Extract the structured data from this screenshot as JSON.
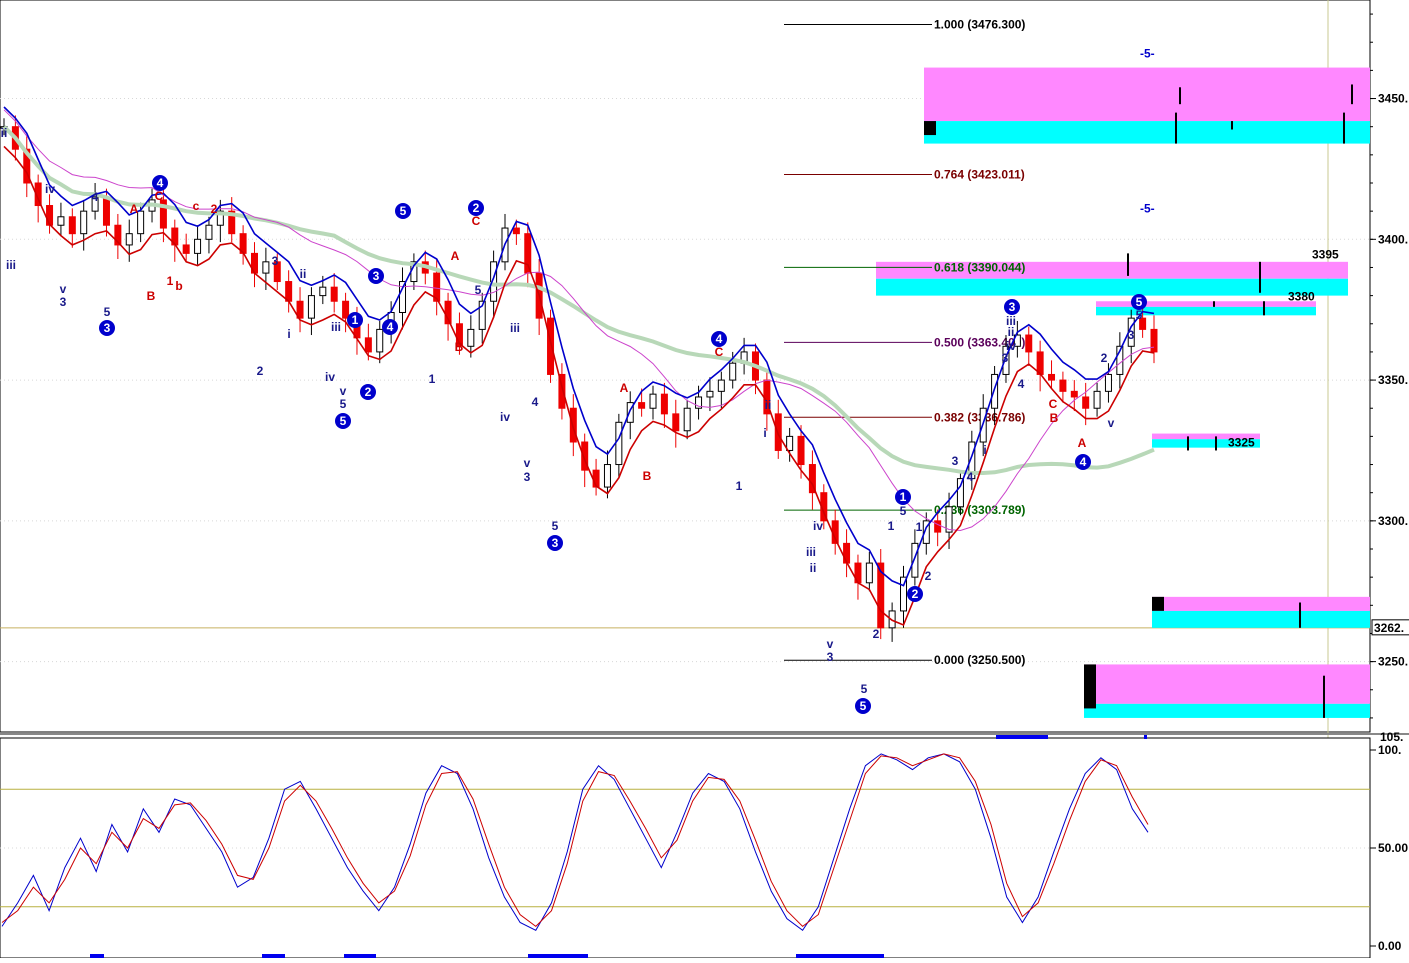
{
  "chart_data": [
    {
      "type": "candlestick",
      "panel": "price",
      "ylim": [
        3225,
        3485
      ],
      "y_tick_labels": [
        "3450.",
        "3400.",
        "3350.",
        "3300.",
        "3250."
      ],
      "y_ticks": [
        3450,
        3400,
        3350,
        3300,
        3250
      ],
      "current_price_label": "3262.",
      "current_price": 3262,
      "grid": true,
      "fibonacci": [
        {
          "ratio": "1.000",
          "price": "3476.300",
          "value": 3476.3,
          "color": "#000000"
        },
        {
          "ratio": "0.764",
          "price": "3423.011",
          "value": 3423.011,
          "color": "#7a0000"
        },
        {
          "ratio": "0.618",
          "price": "3390.044",
          "value": 3390.044,
          "color": "#006400"
        },
        {
          "ratio": "0.500",
          "price": "3363.400",
          "value": 3363.4,
          "color": "#5a005a"
        },
        {
          "ratio": "0.382",
          "price": "3336.786",
          "value": 3336.786,
          "color": "#7a0000"
        },
        {
          "ratio": "0.236",
          "price": "3303.789",
          "value": 3303.789,
          "color": "#006400"
        },
        {
          "ratio": "0.000",
          "price": "3250.500",
          "value": 3250.5,
          "color": "#000000"
        }
      ],
      "fib_label_texts": [
        "1.000 (3476.300)",
        "0.764 (3423.011)",
        "0.618 (3390.044)",
        "0.500 (3363.400)",
        "0.382 (3336.786)",
        "0.236 (3303.789)",
        "0.000 (3250.500)"
      ],
      "price_zone_labels": [
        {
          "text": "3395",
          "value": 3395
        },
        {
          "text": "3380",
          "value": 3380
        },
        {
          "text": "3325",
          "value": 3325
        }
      ],
      "dash_labels": [
        "-5-",
        "-5-"
      ],
      "wave_labels_red": [
        "A",
        "C",
        "B",
        "c",
        "b",
        "1",
        "2",
        "A",
        "C",
        "B",
        "A",
        "B",
        "C",
        "A",
        "B",
        "C"
      ],
      "wave_labels_blue_circled": [
        "4",
        "3",
        "5",
        "2",
        "3",
        "1",
        "2",
        "4",
        "5",
        "3",
        "4",
        "5",
        "1",
        "2",
        "3",
        "5",
        "4"
      ],
      "wave_labels_dark": [
        "ii",
        "iii",
        "iv",
        "v",
        "3",
        "4",
        "5",
        "2",
        "3",
        "i",
        "ii",
        "iii",
        "iv",
        "v",
        "5",
        "iv",
        "iii",
        "v",
        "3",
        "4",
        "5",
        "1",
        "i",
        "ii",
        "iv",
        "ii",
        "iii",
        "v",
        "3",
        "5",
        "2",
        "1",
        "2",
        "3",
        "4",
        "5",
        "1",
        "i",
        "3",
        "4",
        "ii",
        "iii",
        "iv",
        "v",
        "5",
        "2",
        "3",
        "1",
        "5"
      ],
      "close_series": [
        3440,
        3432,
        3420,
        3412,
        3405,
        3408,
        3402,
        3410,
        3415,
        3405,
        3398,
        3402,
        3410,
        3414,
        3404,
        3398,
        3395,
        3400,
        3405,
        3410,
        3402,
        3395,
        3388,
        3392,
        3385,
        3378,
        3372,
        3380,
        3383,
        3378,
        3372,
        3365,
        3360,
        3368,
        3374,
        3385,
        3392,
        3388,
        3378,
        3370,
        3362,
        3368,
        3378,
        3392,
        3404,
        3402,
        3388,
        3372,
        3352,
        3340,
        3328,
        3318,
        3312,
        3320,
        3335,
        3342,
        3340,
        3345,
        3338,
        3332,
        3340,
        3344,
        3346,
        3350,
        3356,
        3360,
        3350,
        3338,
        3325,
        3330,
        3320,
        3310,
        3300,
        3292,
        3285,
        3278,
        3285,
        3262,
        3268,
        3280,
        3292,
        3300,
        3296,
        3305,
        3315,
        3328,
        3340,
        3352,
        3362,
        3366,
        3360,
        3352,
        3350,
        3346,
        3344,
        3340,
        3346,
        3352,
        3362,
        3372,
        3368,
        3360
      ],
      "moving_averages": [
        {
          "color": "#0000cc",
          "role": "upper band"
        },
        {
          "color": "#cc0000",
          "role": "lower band"
        },
        {
          "color": "#cc44cc",
          "role": "slow average"
        },
        {
          "color": "#b8d8b8",
          "role": "long average"
        }
      ]
    },
    {
      "type": "line",
      "panel": "oscillator",
      "ylim": [
        0,
        100
      ],
      "y_tick_labels": [
        "100.",
        "50.00",
        "0.00"
      ],
      "y_ticks": [
        100,
        50,
        0
      ],
      "top_clip_label": "105.",
      "reference_lines": [
        80,
        20
      ],
      "series": [
        {
          "color": "#0000cc",
          "values": [
            10,
            22,
            36,
            18,
            40,
            55,
            38,
            62,
            48,
            70,
            58,
            75,
            72,
            60,
            48,
            30,
            35,
            55,
            80,
            84,
            70,
            55,
            40,
            28,
            18,
            30,
            52,
            78,
            92,
            88,
            70,
            45,
            25,
            12,
            8,
            22,
            48,
            80,
            92,
            85,
            70,
            55,
            40,
            58,
            78,
            88,
            84,
            70,
            48,
            28,
            14,
            8,
            20,
            45,
            70,
            92,
            98,
            95,
            90,
            96,
            98,
            94,
            80,
            55,
            25,
            12,
            25,
            48,
            70,
            88,
            96,
            90,
            70,
            58
          ]
        },
        {
          "color": "#cc0000",
          "values": [
            12,
            18,
            30,
            22,
            34,
            50,
            42,
            58,
            50,
            65,
            60,
            72,
            73,
            64,
            52,
            36,
            34,
            50,
            74,
            82,
            74,
            60,
            45,
            32,
            22,
            28,
            46,
            72,
            88,
            89,
            75,
            52,
            30,
            16,
            10,
            18,
            42,
            74,
            89,
            87,
            74,
            60,
            45,
            54,
            74,
            86,
            85,
            74,
            54,
            33,
            18,
            10,
            16,
            40,
            64,
            88,
            97,
            96,
            92,
            95,
            98,
            96,
            84,
            62,
            32,
            15,
            22,
            42,
            64,
            84,
            95,
            92,
            76,
            62
          ]
        }
      ]
    }
  ],
  "colors": {
    "magenta_zone": "#ff88ff",
    "cyan_zone": "#00ffff",
    "bull_candle": "#000000",
    "bear_candle": "#ee0000",
    "fib_line": "#000000",
    "vertical_marker": "#c8c890",
    "grid": "#d8d8d8",
    "blue_wave": "#0000cc",
    "red_wave": "#cc0000"
  },
  "icons": [
    "circled-wave-number-icon"
  ]
}
